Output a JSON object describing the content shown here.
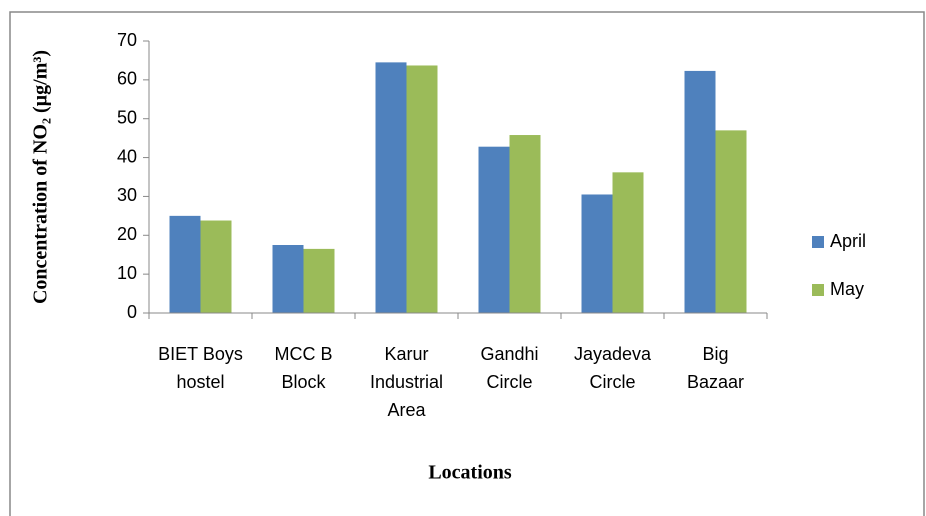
{
  "chart_data": {
    "type": "bar",
    "y_label": "Concentration of NO₂ (µg/m³)",
    "x_label": "Locations",
    "categories": [
      "BIET Boys hostel",
      "MCC B Block",
      "Karur Industrial Area",
      "Gandhi Circle",
      "Jayadeva Circle",
      "Big Bazaar"
    ],
    "series": [
      {
        "name": "April",
        "color": "#4f81bd",
        "values": [
          25,
          17.5,
          64.5,
          42.8,
          30.5,
          62.3
        ]
      },
      {
        "name": "May",
        "color": "#9bbb59",
        "values": [
          23.8,
          16.5,
          63.7,
          45.8,
          36.2,
          47
        ]
      }
    ],
    "ylim": [
      0,
      70
    ],
    "yticks": [
      0,
      10,
      20,
      30,
      40,
      50,
      60,
      70
    ],
    "legend": "right"
  }
}
